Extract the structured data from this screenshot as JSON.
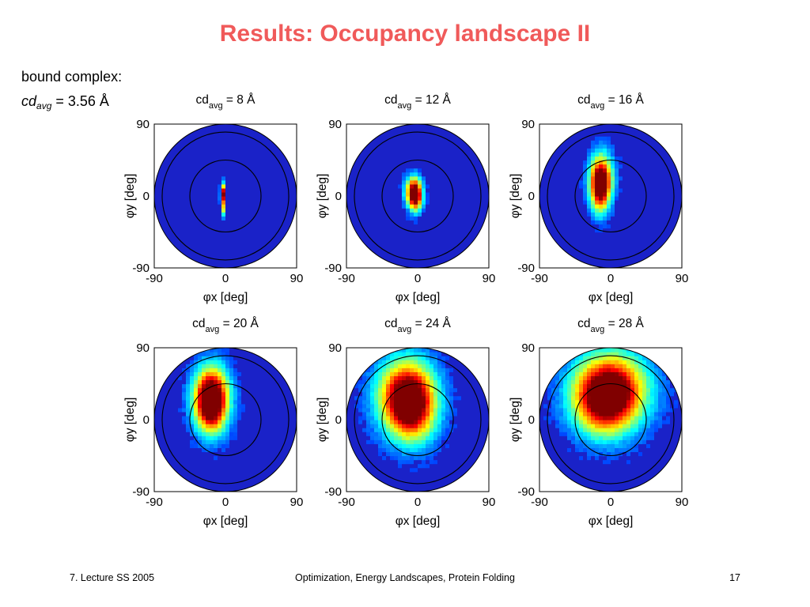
{
  "slide": {
    "title": "Results: Occupancy landscape II",
    "label_line1": "bound complex:",
    "label_cd": "cd",
    "label_avg": "avg",
    "label_value": " = 3.56 Å"
  },
  "footer": {
    "left": "7. Lecture SS 2005",
    "center": "Optimization, Energy Landscapes, Protein Folding",
    "right": "17"
  },
  "chart_data": {
    "type": "heatmap",
    "title_prefix": "cd",
    "title_subscript": "avg",
    "xlabel": "φx [deg]",
    "ylabel": "φy [deg]",
    "xlim": [
      -90,
      90
    ],
    "ylim": [
      -90,
      90
    ],
    "xticks": [
      "-90",
      "0",
      "90"
    ],
    "yticks": [
      "90",
      "0",
      "-90"
    ],
    "colormap": "jet",
    "background_color": "#1a22c8",
    "reference_circle_radii_deg": [
      45,
      80
    ],
    "panels": [
      {
        "title_value": "= 8 Å",
        "peak_center_deg": [
          -3,
          3
        ],
        "spread_deg": [
          3,
          12
        ],
        "peak": 1.0,
        "tail_deg": [
          0,
          -18
        ]
      },
      {
        "title_value": "= 12 Å",
        "peak_center_deg": [
          -5,
          6
        ],
        "spread_deg": [
          10,
          18
        ],
        "peak": 1.0,
        "tail_deg": [
          3,
          -10
        ]
      },
      {
        "title_value": "= 16 Å",
        "peak_center_deg": [
          -12,
          22
        ],
        "spread_deg": [
          14,
          30
        ],
        "peak": 1.0,
        "tail_deg": [
          -2,
          -20
        ]
      },
      {
        "title_value": "= 20 Å",
        "peak_center_deg": [
          -18,
          28
        ],
        "spread_deg": [
          22,
          38
        ],
        "peak": 1.0,
        "tail_deg": [
          0,
          -10
        ]
      },
      {
        "title_value": "= 24 Å",
        "peak_center_deg": [
          -15,
          30
        ],
        "spread_deg": [
          35,
          45
        ],
        "peak": 1.0,
        "tail_deg": [
          10,
          -20
        ]
      },
      {
        "title_value": "= 28 Å",
        "peak_center_deg": [
          0,
          38
        ],
        "spread_deg": [
          45,
          45
        ],
        "peak": 1.0,
        "tail_deg": [
          -10,
          -20
        ]
      }
    ]
  }
}
